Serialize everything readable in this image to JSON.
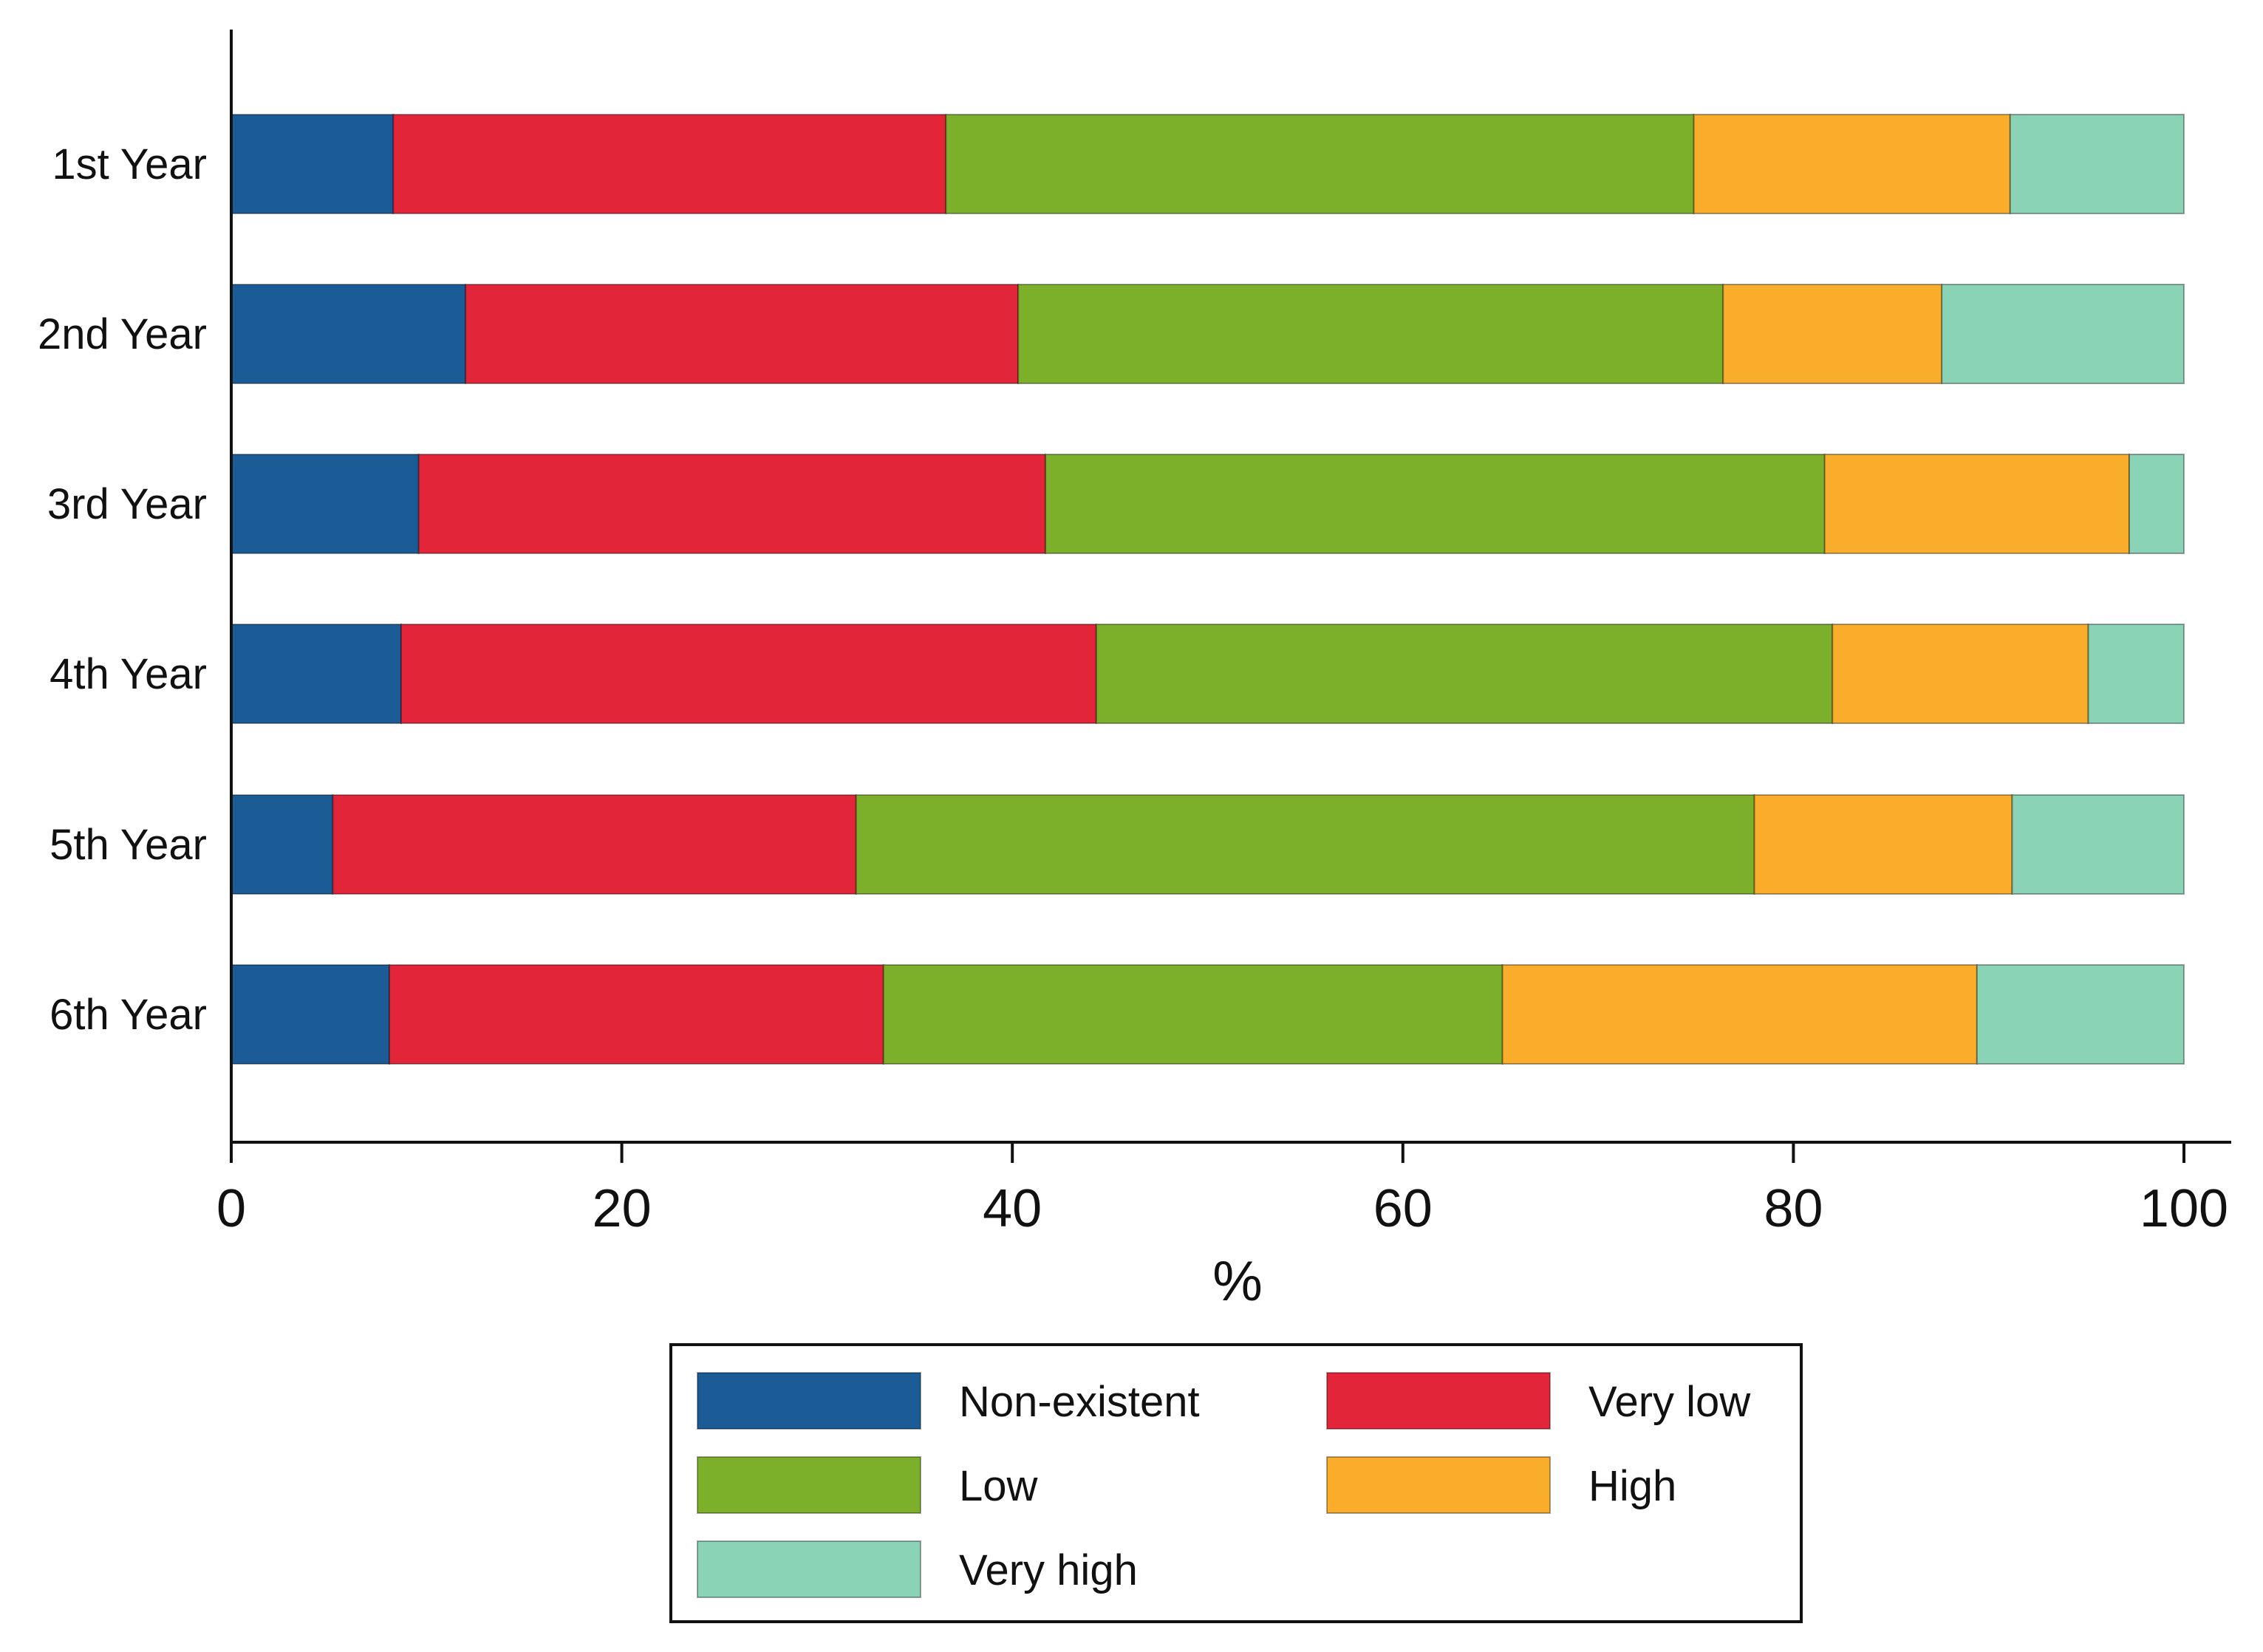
{
  "chart_data": {
    "type": "bar",
    "orientation": "horizontal",
    "stacked": true,
    "title": "",
    "xlabel": "%",
    "ylabel": "",
    "xlim": [
      0,
      100
    ],
    "xticks": [
      0,
      20,
      40,
      60,
      80,
      100
    ],
    "xtick_labels": [
      "0",
      "20",
      "40",
      "60",
      "80",
      "100"
    ],
    "categories": [
      "1st Year",
      "2nd Year",
      "3rd Year",
      "4th Year",
      "5th Year",
      "6th Year"
    ],
    "series": [
      {
        "name": "Non-existent",
        "color": "#1b5c96",
        "values": [
          8.3,
          12.0,
          9.6,
          8.7,
          5.2,
          8.1
        ]
      },
      {
        "name": "Very low",
        "color": "#e3253a",
        "values": [
          28.3,
          28.3,
          32.1,
          35.6,
          26.8,
          25.3
        ]
      },
      {
        "name": "Low",
        "color": "#7db02a",
        "values": [
          38.3,
          36.1,
          39.9,
          37.7,
          46.0,
          31.7
        ]
      },
      {
        "name": "High",
        "color": "#f9ad2b",
        "values": [
          16.2,
          11.2,
          15.6,
          13.1,
          13.2,
          24.3
        ]
      },
      {
        "name": "Very high",
        "color": "#8bd3b7",
        "values": [
          8.9,
          12.4,
          2.8,
          4.9,
          8.8,
          10.6
        ]
      }
    ],
    "legend_position": "bottom"
  }
}
